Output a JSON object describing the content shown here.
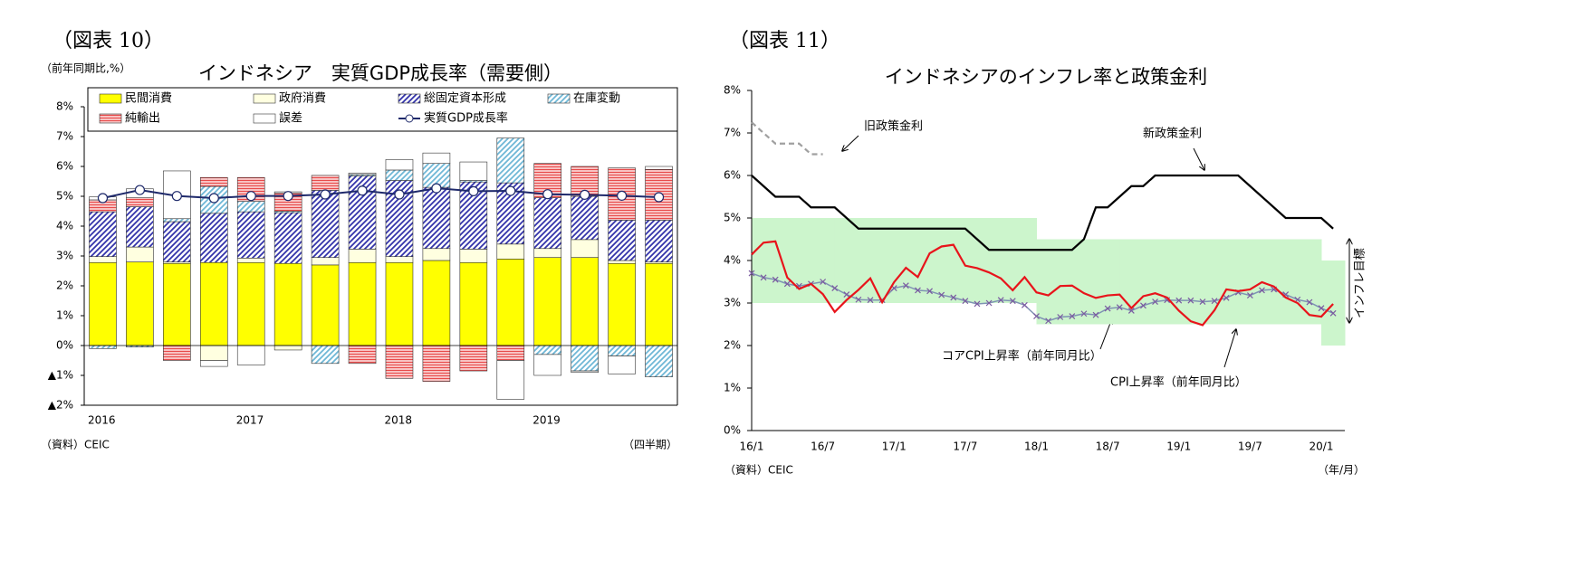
{
  "chart_data": [
    {
      "type": "bar",
      "stacked": true,
      "figure_label": "（図表 10）",
      "unit_label": "（前年同期比,%）",
      "title": "インドネシア　実質GDP成長率（需要側）",
      "source": "（資料）CEIC",
      "x_label": "（四半期）",
      "categories": [
        "2016",
        null,
        null,
        null,
        "2017",
        null,
        null,
        null,
        "2018",
        null,
        null,
        null,
        "2019",
        null,
        null,
        null
      ],
      "ylim": [
        -2,
        8
      ],
      "yticks": [
        {
          "value": -2,
          "label": "▲2%"
        },
        {
          "value": -1,
          "label": "▲1%"
        },
        {
          "value": 0,
          "label": "0%"
        },
        {
          "value": 1,
          "label": "1%"
        },
        {
          "value": 2,
          "label": "2%"
        },
        {
          "value": 3,
          "label": "3%"
        },
        {
          "value": 4,
          "label": "4%"
        },
        {
          "value": 5,
          "label": "5%"
        },
        {
          "value": 6,
          "label": "6%"
        },
        {
          "value": 7,
          "label": "7%"
        },
        {
          "value": 8,
          "label": "8%"
        }
      ],
      "series": [
        {
          "name": "民間消費",
          "color": "#ffff00",
          "values": [
            2.78,
            2.8,
            2.75,
            2.78,
            2.78,
            2.75,
            2.7,
            2.78,
            2.78,
            2.85,
            2.78,
            2.9,
            2.95,
            2.95,
            2.75,
            2.75
          ]
        },
        {
          "name": "政府消費",
          "color": "#ffffe0",
          "values": [
            0.2,
            0.5,
            0.05,
            -0.5,
            0.15,
            -0.15,
            0.25,
            0.45,
            0.2,
            0.4,
            0.45,
            0.5,
            0.3,
            0.6,
            0.1,
            0.05
          ]
        },
        {
          "name": "総固定資本形成",
          "color": "#3333aa",
          "pattern": "diagonal",
          "values": [
            1.5,
            1.35,
            1.35,
            1.65,
            1.55,
            1.7,
            2.25,
            2.45,
            2.55,
            2.05,
            2.25,
            2.05,
            1.7,
            1.45,
            1.35,
            1.4
          ]
        },
        {
          "name": "在庫変動",
          "color": "#6fb7d6",
          "pattern": "diagonal",
          "values": [
            -0.1,
            -0.05,
            0.1,
            0.9,
            0.35,
            0.05,
            -0.6,
            0.05,
            0.35,
            0.8,
            0.05,
            1.5,
            -0.3,
            -0.85,
            -0.35,
            -1.05
          ]
        },
        {
          "name": "純輸出",
          "color": "#e84a4a",
          "pattern": "horizontal",
          "values": [
            0.4,
            0.3,
            -0.5,
            0.3,
            0.8,
            0.6,
            0.5,
            -0.6,
            -1.1,
            -1.2,
            -0.85,
            -0.5,
            1.15,
            1.0,
            1.75,
            1.7
          ]
        },
        {
          "name": "誤差",
          "color": "#ffffff",
          "values": [
            0.1,
            0.3,
            1.6,
            -0.2,
            -0.65,
            0.05,
            0,
            0.05,
            0.35,
            0.35,
            0.62,
            -1.3,
            -0.7,
            -0.05,
            -0.6,
            0.1
          ]
        },
        {
          "name": "実質GDP成長率",
          "type": "line",
          "color": "#1f2a6b",
          "marker": "circle",
          "values": [
            4.94,
            5.21,
            5.01,
            4.94,
            5.01,
            5.01,
            5.06,
            5.19,
            5.06,
            5.27,
            5.17,
            5.18,
            5.07,
            5.05,
            5.02,
            4.97
          ]
        }
      ]
    },
    {
      "type": "line",
      "figure_label": "（図表 11）",
      "title": "インドネシアのインフレ率と政策金利",
      "source": "（資料）CEIC",
      "x_label": "（年/月）",
      "categories": [
        "16/1",
        null,
        null,
        null,
        null,
        null,
        "16/7",
        null,
        null,
        null,
        null,
        null,
        "17/1",
        null,
        null,
        null,
        null,
        null,
        "17/7",
        null,
        null,
        null,
        null,
        null,
        "18/1",
        null,
        null,
        null,
        null,
        null,
        "18/7",
        null,
        null,
        null,
        null,
        null,
        "19/1",
        null,
        null,
        null,
        null,
        null,
        "19/7",
        null,
        null,
        null,
        null,
        null,
        "20/1",
        null
      ],
      "ylim": [
        0,
        8
      ],
      "yticks": [
        {
          "value": 0,
          "label": "0%"
        },
        {
          "value": 1,
          "label": "1%"
        },
        {
          "value": 2,
          "label": "2%"
        },
        {
          "value": 3,
          "label": "3%"
        },
        {
          "value": 4,
          "label": "4%"
        },
        {
          "value": 5,
          "label": "5%"
        },
        {
          "value": 6,
          "label": "6%"
        },
        {
          "value": 7,
          "label": "7%"
        },
        {
          "value": 8,
          "label": "8%"
        }
      ],
      "target": {
        "label": "インフレ目標",
        "color": "#ccf5cc",
        "lower": [
          3,
          3,
          3,
          3,
          3,
          3,
          3,
          3,
          3,
          3,
          3,
          3,
          3,
          3,
          3,
          3,
          3,
          3,
          3,
          3,
          3,
          3,
          3,
          3,
          2.5,
          2.5,
          2.5,
          2.5,
          2.5,
          2.5,
          2.5,
          2.5,
          2.5,
          2.5,
          2.5,
          2.5,
          2.5,
          2.5,
          2.5,
          2.5,
          2.5,
          2.5,
          2.5,
          2.5,
          2.5,
          2.5,
          2.5,
          2.5,
          2,
          2
        ],
        "upper": [
          5,
          5,
          5,
          5,
          5,
          5,
          5,
          5,
          5,
          5,
          5,
          5,
          5,
          5,
          5,
          5,
          5,
          5,
          5,
          5,
          5,
          5,
          5,
          5,
          4.5,
          4.5,
          4.5,
          4.5,
          4.5,
          4.5,
          4.5,
          4.5,
          4.5,
          4.5,
          4.5,
          4.5,
          4.5,
          4.5,
          4.5,
          4.5,
          4.5,
          4.5,
          4.5,
          4.5,
          4.5,
          4.5,
          4.5,
          4.5,
          4,
          4
        ]
      },
      "series": [
        {
          "name": "旧政策金利",
          "color": "#a0a0a0",
          "dash": true,
          "values": [
            7.25,
            7.0,
            6.75,
            6.75,
            6.75,
            6.5,
            6.5,
            null,
            null,
            null,
            null,
            null,
            null,
            null,
            null,
            null,
            null,
            null,
            null,
            null,
            null,
            null,
            null,
            null,
            null,
            null,
            null,
            null,
            null,
            null,
            null,
            null,
            null,
            null,
            null,
            null,
            null,
            null,
            null,
            null,
            null,
            null,
            null,
            null,
            null,
            null,
            null,
            null,
            null,
            null
          ]
        },
        {
          "name": "新政策金利",
          "color": "#000000",
          "values": [
            6.0,
            5.75,
            5.5,
            5.5,
            5.5,
            5.25,
            5.25,
            5.25,
            5.0,
            4.75,
            4.75,
            4.75,
            4.75,
            4.75,
            4.75,
            4.75,
            4.75,
            4.75,
            4.75,
            4.5,
            4.25,
            4.25,
            4.25,
            4.25,
            4.25,
            4.25,
            4.25,
            4.25,
            4.5,
            5.25,
            5.25,
            5.5,
            5.75,
            5.75,
            6.0,
            6.0,
            6.0,
            6.0,
            6.0,
            6.0,
            6.0,
            6.0,
            5.75,
            5.5,
            5.25,
            5.0,
            5.0,
            5.0,
            5.0,
            4.75
          ]
        },
        {
          "name": "コアCPI上昇率（前年同月比）",
          "color": "#7f93b3",
          "marker": "x",
          "values": [
            3.7,
            3.6,
            3.55,
            3.45,
            3.4,
            3.45,
            3.5,
            3.35,
            3.2,
            3.08,
            3.07,
            3.07,
            3.35,
            3.41,
            3.3,
            3.28,
            3.19,
            3.13,
            3.05,
            2.98,
            3.0,
            3.07,
            3.05,
            2.95,
            2.69,
            2.58,
            2.67,
            2.69,
            2.75,
            2.72,
            2.87,
            2.9,
            2.82,
            2.94,
            3.03,
            3.07,
            3.06,
            3.06,
            3.03,
            3.05,
            3.12,
            3.25,
            3.18,
            3.3,
            3.32,
            3.2,
            3.08,
            3.02,
            2.88,
            2.76
          ]
        },
        {
          "name": "CPI上昇率（前年同月比）",
          "color": "#e8141b",
          "values": [
            4.14,
            4.42,
            4.45,
            3.6,
            3.33,
            3.45,
            3.21,
            2.79,
            3.07,
            3.31,
            3.58,
            3.02,
            3.49,
            3.83,
            3.61,
            4.17,
            4.33,
            4.37,
            3.88,
            3.82,
            3.72,
            3.58,
            3.3,
            3.61,
            3.25,
            3.18,
            3.4,
            3.41,
            3.23,
            3.12,
            3.18,
            3.2,
            2.88,
            3.16,
            3.23,
            3.13,
            2.82,
            2.57,
            2.48,
            2.83,
            3.32,
            3.28,
            3.32,
            3.49,
            3.39,
            3.13,
            3.0,
            2.72,
            2.68,
            2.98
          ]
        }
      ]
    }
  ]
}
